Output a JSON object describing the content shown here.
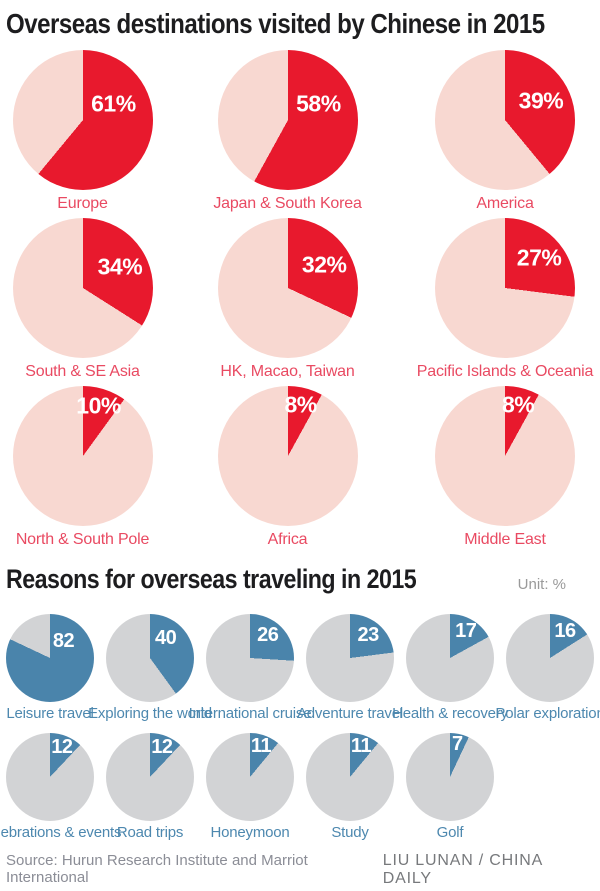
{
  "page": {
    "title1": "Overseas destinations visited by Chinese in 2015",
    "title2": "Reasons for overseas traveling in 2015",
    "unit_label": "Unit: %",
    "source": "Source: Hurun Research Institute and Marriot International",
    "credit": "LIU LUNAN / CHINA DAILY"
  },
  "colors": {
    "destination_slice_red": "#e8192d",
    "destination_remainder_pink": "#f8d8d1",
    "destination_label_red": "#e94a62",
    "reason_slice_blue": "#4a84ab",
    "reason_remainder_gray": "#d2d3d5",
    "reason_label_blue": "#4d88af",
    "title_text": "#1d1d1f",
    "unit_text": "#9a9a9a",
    "source_text": "#8b8d96",
    "credit_text": "#77797c",
    "value_text": "#ffffff"
  },
  "chart_data": [
    {
      "type": "pie",
      "title": "Overseas destinations visited by Chinese in 2015",
      "unit": "%",
      "layout": "3x3 grid of single-slice pies; red slice starts at 12 o'clock clockwise; value label inside slice; category label below pie",
      "categories": [
        "Europe",
        "Japan & South Korea",
        "America",
        "South & SE Asia",
        "HK, Macao, Taiwan",
        "Pacific Islands & Oceania",
        "North & South Pole",
        "Africa",
        "Middle East"
      ],
      "values": [
        61,
        58,
        39,
        34,
        32,
        27,
        10,
        8,
        8
      ],
      "display_values": [
        "61%",
        "58%",
        "39%",
        "34%",
        "32%",
        "27%",
        "10%",
        "8%",
        "8%"
      ],
      "slice_color": "#e8192d",
      "remainder_color": "#f8d8d1",
      "label_color": "#e94a62"
    },
    {
      "type": "pie",
      "title": "Reasons for overseas traveling in 2015",
      "unit": "%",
      "layout": "rows of 6 and 5 small single-slice pies; blue slice starts at 12 o'clock clockwise; value label inside slice; category label below pie",
      "categories": [
        "Leisure travel",
        "Exploring the world",
        "International cruise",
        "Adventure travel",
        "Health & recovery",
        "Polar exploration",
        "Celebrations & events",
        "Road trips",
        "Honeymoon",
        "Study",
        "Golf"
      ],
      "values": [
        82,
        40,
        26,
        23,
        17,
        16,
        12,
        12,
        11,
        11,
        7
      ],
      "display_values": [
        "82",
        "40",
        "26",
        "23",
        "17",
        "16",
        "12",
        "12",
        "11",
        "11",
        "7"
      ],
      "slice_color": "#4a84ab",
      "remainder_color": "#d2d3d5",
      "label_color": "#4d88af"
    }
  ]
}
